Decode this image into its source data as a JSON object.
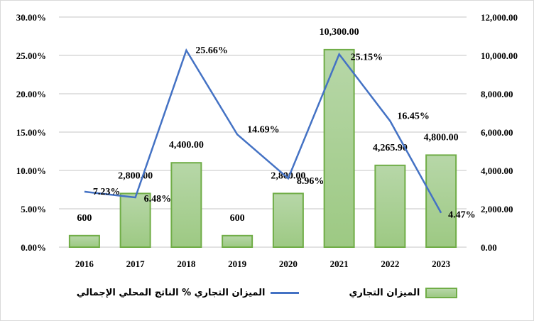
{
  "chart_data": {
    "type": "bar+line",
    "categories": [
      "2016",
      "2017",
      "2018",
      "2019",
      "2020",
      "2021",
      "2022",
      "2023"
    ],
    "series": [
      {
        "name": "الميزان التجاري",
        "type": "bar",
        "axis": "right",
        "values": [
          600,
          2800,
          4400,
          600,
          2800,
          10300,
          4265.9,
          4800
        ],
        "labels": [
          "600",
          "2,800.00",
          "4,400.00",
          "600",
          "2,800.00",
          "10,300.00",
          "4,265.90",
          "4,800.00"
        ],
        "color": "#a9d18e",
        "border": "#70ad47"
      },
      {
        "name": "الميزان التجاري % الناتج المحلي الإجمالي",
        "type": "line",
        "axis": "left",
        "values": [
          7.23,
          6.48,
          25.66,
          14.69,
          8.96,
          25.15,
          16.45,
          4.47
        ],
        "labels": [
          "7.23%",
          "6.48%",
          "25.66%",
          "14.69%",
          "8.96%",
          "25.15%",
          "16.45%",
          "4.47%"
        ],
        "color": "#4472c4"
      }
    ],
    "left_axis": {
      "range": [
        0,
        30
      ],
      "ticks": [
        "0.00%",
        "5.00%",
        "10.00%",
        "15.00%",
        "20.00%",
        "25.00%",
        "30.00%"
      ]
    },
    "right_axis": {
      "range": [
        0,
        12000
      ],
      "ticks": [
        "0.00",
        "2,000.00",
        "4,000.00",
        "6,000.00",
        "8,000.00",
        "10,000.00",
        "12,000.00"
      ]
    },
    "grid": true,
    "legend": "bottom"
  }
}
